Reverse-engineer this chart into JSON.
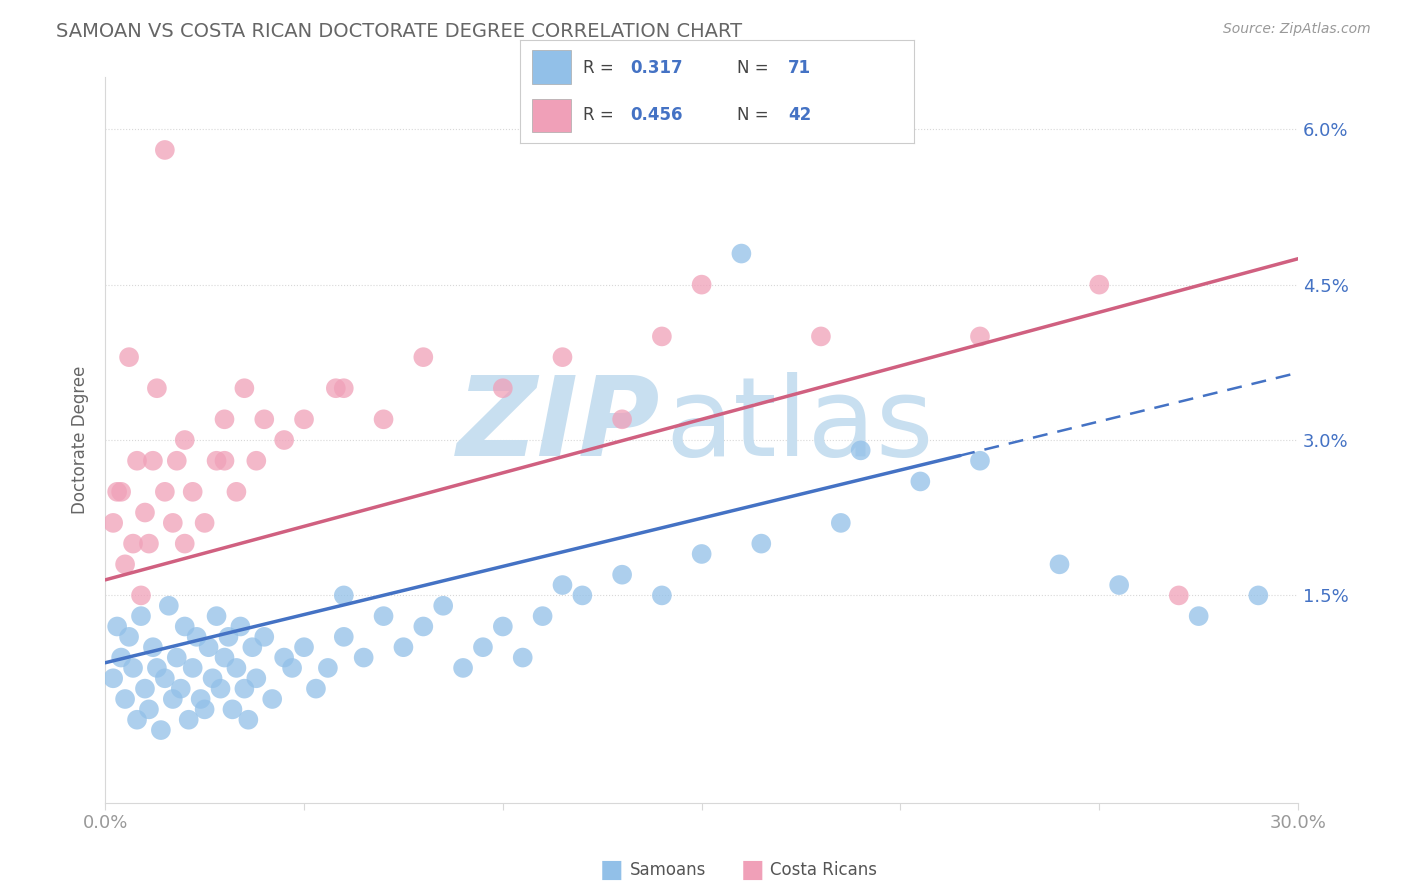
{
  "title": "SAMOAN VS COSTA RICAN DOCTORATE DEGREE CORRELATION CHART",
  "source": "Source: ZipAtlas.com",
  "ylabel": "Doctorate Degree",
  "xmin": 0.0,
  "xmax": 30.0,
  "ymin": -0.5,
  "ymax": 6.5,
  "samoans_R": 0.317,
  "samoans_N": 71,
  "costa_ricans_R": 0.456,
  "costa_ricans_N": 42,
  "samoan_color": "#92c0e8",
  "costa_rican_color": "#f0a0b8",
  "samoan_line_color": "#4472c4",
  "costa_rican_line_color": "#d06080",
  "background_color": "#ffffff",
  "watermark_color": "#c8dff0",
  "grid_color": "#d8d8d8",
  "tick_color": "#999999",
  "title_color": "#666666",
  "right_tick_color": "#4472c4",
  "sam_line_x0": 0.0,
  "sam_line_y0": 0.85,
  "sam_line_x1": 21.5,
  "sam_line_y1": 2.85,
  "sam_line_dash_x1": 30.0,
  "sam_line_dash_y1": 3.65,
  "cr_line_x0": 0.0,
  "cr_line_y0": 1.65,
  "cr_line_x1": 30.0,
  "cr_line_y1": 4.75,
  "samoans_x": [
    0.2,
    0.3,
    0.4,
    0.5,
    0.6,
    0.7,
    0.8,
    0.9,
    1.0,
    1.1,
    1.2,
    1.3,
    1.4,
    1.5,
    1.6,
    1.7,
    1.8,
    1.9,
    2.0,
    2.1,
    2.2,
    2.3,
    2.4,
    2.5,
    2.6,
    2.7,
    2.8,
    2.9,
    3.0,
    3.1,
    3.2,
    3.3,
    3.4,
    3.5,
    3.6,
    3.7,
    3.8,
    4.0,
    4.2,
    4.5,
    4.7,
    5.0,
    5.3,
    5.6,
    6.0,
    6.5,
    7.0,
    7.5,
    8.0,
    8.5,
    9.0,
    9.5,
    10.0,
    10.5,
    11.0,
    12.0,
    13.0,
    14.0,
    15.0,
    16.5,
    18.5,
    20.5,
    22.0,
    24.0,
    25.5,
    27.5,
    29.0,
    11.5,
    6.0,
    19.0,
    16.0
  ],
  "samoans_y": [
    0.7,
    1.2,
    0.9,
    0.5,
    1.1,
    0.8,
    0.3,
    1.3,
    0.6,
    0.4,
    1.0,
    0.8,
    0.2,
    0.7,
    1.4,
    0.5,
    0.9,
    0.6,
    1.2,
    0.3,
    0.8,
    1.1,
    0.5,
    0.4,
    1.0,
    0.7,
    1.3,
    0.6,
    0.9,
    1.1,
    0.4,
    0.8,
    1.2,
    0.6,
    0.3,
    1.0,
    0.7,
    1.1,
    0.5,
    0.9,
    0.8,
    1.0,
    0.6,
    0.8,
    1.1,
    0.9,
    1.3,
    1.0,
    1.2,
    1.4,
    0.8,
    1.0,
    1.2,
    0.9,
    1.3,
    1.5,
    1.7,
    1.5,
    1.9,
    2.0,
    2.2,
    2.6,
    2.8,
    1.8,
    1.6,
    1.3,
    1.5,
    1.6,
    1.5,
    2.9,
    4.8
  ],
  "costa_ricans_x": [
    0.2,
    0.3,
    0.5,
    0.6,
    0.7,
    0.8,
    0.9,
    1.0,
    1.1,
    1.3,
    1.5,
    1.7,
    1.8,
    2.0,
    2.2,
    2.5,
    2.8,
    3.0,
    3.3,
    3.5,
    3.8,
    4.5,
    5.0,
    5.8,
    7.0,
    10.0,
    11.5,
    13.0,
    15.0,
    18.0,
    25.0,
    0.4,
    1.2,
    2.0,
    3.0,
    4.0,
    6.0,
    8.0,
    14.0,
    22.0,
    27.0,
    1.5
  ],
  "costa_ricans_y": [
    2.2,
    2.5,
    1.8,
    3.8,
    2.0,
    2.8,
    1.5,
    2.3,
    2.0,
    3.5,
    2.5,
    2.2,
    2.8,
    2.0,
    2.5,
    2.2,
    2.8,
    3.2,
    2.5,
    3.5,
    2.8,
    3.0,
    3.2,
    3.5,
    3.2,
    3.5,
    3.8,
    3.2,
    4.5,
    4.0,
    4.5,
    2.5,
    2.8,
    3.0,
    2.8,
    3.2,
    3.5,
    3.8,
    4.0,
    4.0,
    1.5,
    5.8
  ]
}
